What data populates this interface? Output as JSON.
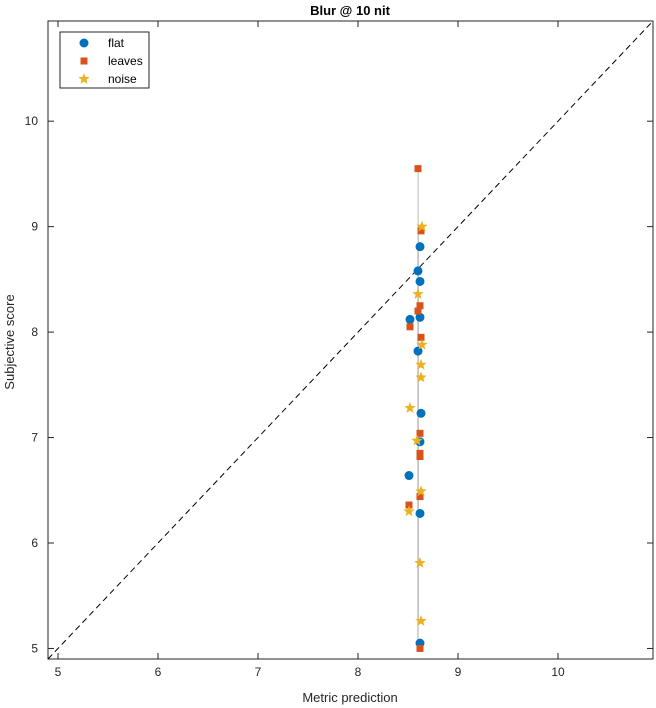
{
  "chart_data": {
    "type": "scatter",
    "title": "Blur @ 10 nit",
    "xlabel": "Metric prediction",
    "ylabel": "Subjective score",
    "xlim": [
      4.9,
      10.95
    ],
    "ylim": [
      4.9,
      10.95
    ],
    "xticks": [
      5,
      6,
      7,
      8,
      9,
      10
    ],
    "yticks": [
      5,
      6,
      7,
      8,
      9,
      10
    ],
    "grid": false,
    "legend_position": "top-left",
    "reference_line": "y = x (dashed)",
    "series": [
      {
        "name": "flat",
        "marker": "circle",
        "color": "#0072BD",
        "points": [
          [
            8.6,
            8.58
          ],
          [
            8.62,
            8.81
          ],
          [
            8.62,
            8.48
          ],
          [
            8.52,
            8.12
          ],
          [
            8.62,
            8.14
          ],
          [
            8.6,
            7.82
          ],
          [
            8.63,
            7.23
          ],
          [
            8.62,
            6.96
          ],
          [
            8.51,
            6.64
          ],
          [
            8.62,
            6.28
          ],
          [
            8.62,
            5.05
          ]
        ]
      },
      {
        "name": "leaves",
        "marker": "square",
        "color": "#D95319",
        "points": [
          [
            8.6,
            9.55
          ],
          [
            8.63,
            8.96
          ],
          [
            8.62,
            8.25
          ],
          [
            8.6,
            8.2
          ],
          [
            8.52,
            8.05
          ],
          [
            8.63,
            7.95
          ],
          [
            8.62,
            7.04
          ],
          [
            8.62,
            6.85
          ],
          [
            8.62,
            6.82
          ],
          [
            8.62,
            6.44
          ],
          [
            8.51,
            6.36
          ],
          [
            8.62,
            5.0
          ]
        ]
      },
      {
        "name": "noise",
        "marker": "star",
        "color": "#EDB120",
        "points": [
          [
            8.64,
            9.0
          ],
          [
            8.6,
            8.36
          ],
          [
            8.64,
            7.88
          ],
          [
            8.63,
            7.69
          ],
          [
            8.63,
            7.57
          ],
          [
            8.52,
            7.28
          ],
          [
            8.59,
            6.97
          ],
          [
            8.63,
            6.49
          ],
          [
            8.51,
            6.3
          ],
          [
            8.62,
            5.81
          ],
          [
            8.63,
            5.26
          ]
        ]
      }
    ]
  }
}
